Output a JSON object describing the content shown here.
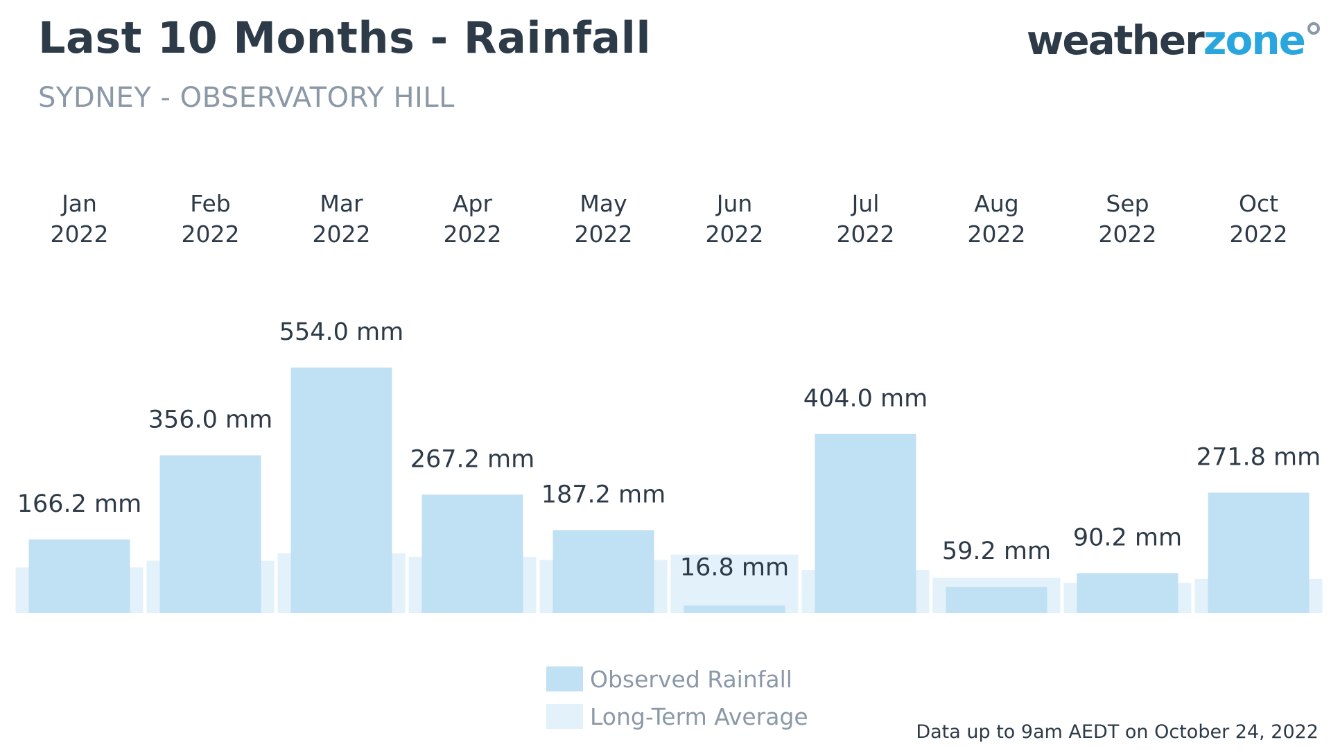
{
  "title": "Last 10 Months - Rainfall",
  "subtitle": "SYDNEY - OBSERVATORY HILL",
  "logo": {
    "part1": "weather",
    "part2": "zone"
  },
  "footer": "Data up to 9am AEDT on October 24, 2022",
  "legend": {
    "observed": "Observed Rainfall",
    "average": "Long-Term Average"
  },
  "colors": {
    "observed": "#c0e0f3",
    "average": "#e3f1fb",
    "text_dark": "#2d3a47",
    "text_muted": "#8b98a8",
    "brand_blue": "#2aa6df"
  },
  "chart_data": {
    "type": "bar",
    "title": "Last 10 Months - Rainfall",
    "subtitle": "SYDNEY - OBSERVATORY HILL",
    "categories": [
      [
        "Jan",
        "2022"
      ],
      [
        "Feb",
        "2022"
      ],
      [
        "Mar",
        "2022"
      ],
      [
        "Apr",
        "2022"
      ],
      [
        "May",
        "2022"
      ],
      [
        "Jun",
        "2022"
      ],
      [
        "Jul",
        "2022"
      ],
      [
        "Aug",
        "2022"
      ],
      [
        "Sep",
        "2022"
      ],
      [
        "Oct",
        "2022"
      ]
    ],
    "series": [
      {
        "name": "Observed Rainfall",
        "values": [
          166.2,
          356.0,
          554.0,
          267.2,
          187.2,
          16.8,
          404.0,
          59.2,
          90.2,
          271.8
        ],
        "labels": [
          "166.2 mm",
          "356.0 mm",
          "554.0 mm",
          "267.2 mm",
          "187.2 mm",
          "16.8 mm",
          "404.0 mm",
          "59.2 mm",
          "90.2 mm",
          "271.8 mm"
        ]
      },
      {
        "name": "Long-Term Average",
        "values": [
          103,
          118,
          135,
          127,
          120,
          132,
          97,
          80,
          68,
          77
        ]
      }
    ],
    "unit": "mm",
    "ylim": [
      0,
      554
    ],
    "grid": false,
    "legend_position": "bottom"
  }
}
